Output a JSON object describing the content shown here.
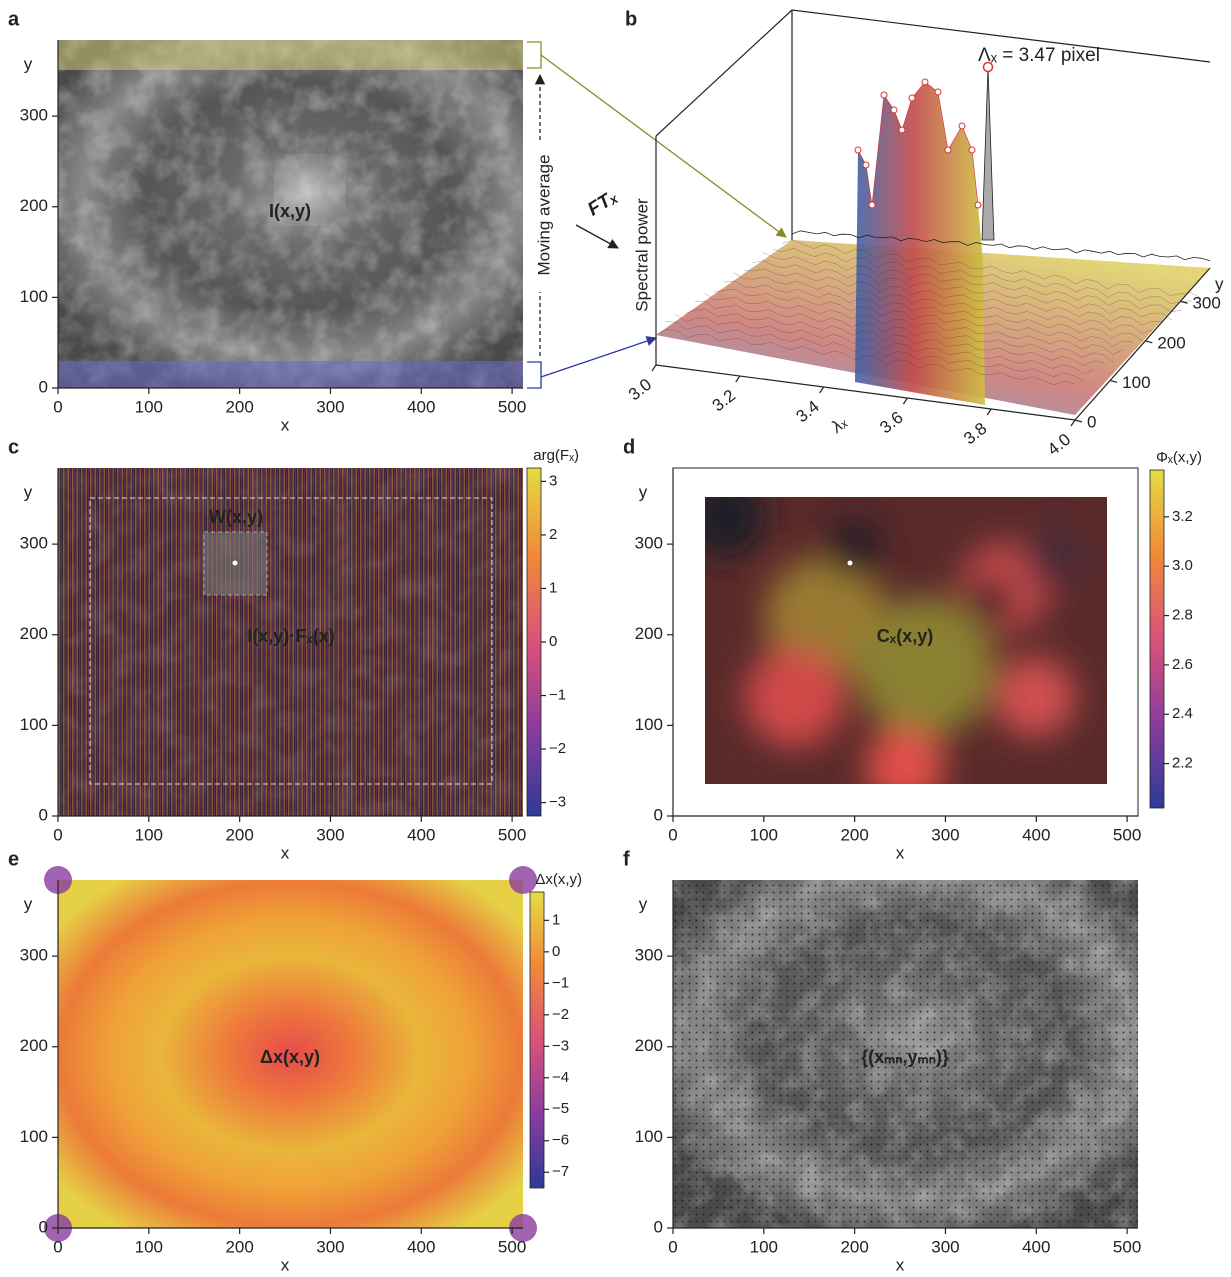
{
  "chart_data": [
    {
      "type": "image",
      "panel": "a",
      "xlabel": "x",
      "ylabel": "y",
      "xlim": [
        0,
        512
      ],
      "ylim": [
        0,
        384
      ],
      "xticks": [
        0,
        100,
        200,
        300,
        400,
        500
      ],
      "yticks": [
        0,
        100,
        200,
        300
      ],
      "annotations": [
        "I(x,y)",
        "Moving average"
      ]
    },
    {
      "type": "surface3d",
      "panel": "b",
      "zlabel": "Spectral power",
      "xlabel": "λₓ",
      "ylabel": "y",
      "xlim": [
        3.0,
        4.0
      ],
      "xticks": [
        {
          "value": 3,
          "label": "3.0"
        },
        3.2,
        3.4,
        3.6,
        3.8,
        {
          "value": 4,
          "label": "4.0"
        }
      ],
      "ylim": [
        0,
        384
      ],
      "yticks": [
        0,
        100,
        200,
        300
      ],
      "annotations": [
        "Λₓ = 3.47 pixel",
        "FTₓ"
      ]
    },
    {
      "type": "image",
      "panel": "c",
      "xlabel": "x",
      "ylabel": "y",
      "xlim": [
        0,
        512
      ],
      "ylim": [
        0,
        384
      ],
      "xticks": [
        0,
        100,
        200,
        300,
        400,
        500
      ],
      "yticks": [
        0,
        100,
        200,
        300
      ],
      "annotations": [
        "W(x,y)",
        "I(x,y)·Fₓ(x)"
      ],
      "colorbar": {
        "label": "arg(Fₓ)",
        "lim": [
          -3.25,
          3.25
        ],
        "ticks": [
          3,
          2,
          1,
          0,
          {
            "value": -1,
            "label": "−1"
          },
          {
            "value": -2,
            "label": "−2"
          },
          {
            "value": -3,
            "label": "−3"
          }
        ]
      }
    },
    {
      "type": "image",
      "panel": "d",
      "xlabel": "x",
      "ylabel": "y",
      "xlim": [
        0,
        512
      ],
      "ylim": [
        0,
        384
      ],
      "xticks": [
        0,
        100,
        200,
        300,
        400,
        500
      ],
      "yticks": [
        0,
        100,
        200,
        300
      ],
      "annotations": [
        "Cₓ(x,y)"
      ],
      "colorbar": {
        "label": "Φₓ(x,y)",
        "lim": [
          2.02,
          3.39
        ],
        "ticks": [
          3.2,
          {
            "value": 3,
            "label": "3.0"
          },
          2.8,
          2.6,
          2.4,
          2.2
        ]
      }
    },
    {
      "type": "image",
      "panel": "e",
      "xlabel": "x",
      "ylabel": "y",
      "xlim": [
        0,
        512
      ],
      "ylim": [
        0,
        384
      ],
      "xticks": [
        0,
        100,
        200,
        300,
        400,
        500
      ],
      "yticks": [
        0,
        100,
        200,
        300
      ],
      "annotations": [
        "Δx(x,y)"
      ],
      "colorbar": {
        "label": "Δx(x,y)",
        "lim": [
          -7.5,
          1.9
        ],
        "ticks": [
          1,
          0,
          {
            "value": -1,
            "label": "−1"
          },
          {
            "value": -2,
            "label": "−2"
          },
          {
            "value": -3,
            "label": "−3"
          },
          {
            "value": -4,
            "label": "−4"
          },
          {
            "value": -5,
            "label": "−5"
          },
          {
            "value": -6,
            "label": "−6"
          },
          {
            "value": -7,
            "label": "−7"
          }
        ]
      }
    },
    {
      "type": "image",
      "panel": "f",
      "xlabel": "x",
      "ylabel": "y",
      "xlim": [
        0,
        512
      ],
      "ylim": [
        0,
        384
      ],
      "xticks": [
        0,
        100,
        200,
        300,
        400,
        500
      ],
      "yticks": [
        0,
        100,
        200,
        300
      ],
      "annotations": [
        "{(xₘₙ,yₘₙ)}"
      ]
    }
  ]
}
